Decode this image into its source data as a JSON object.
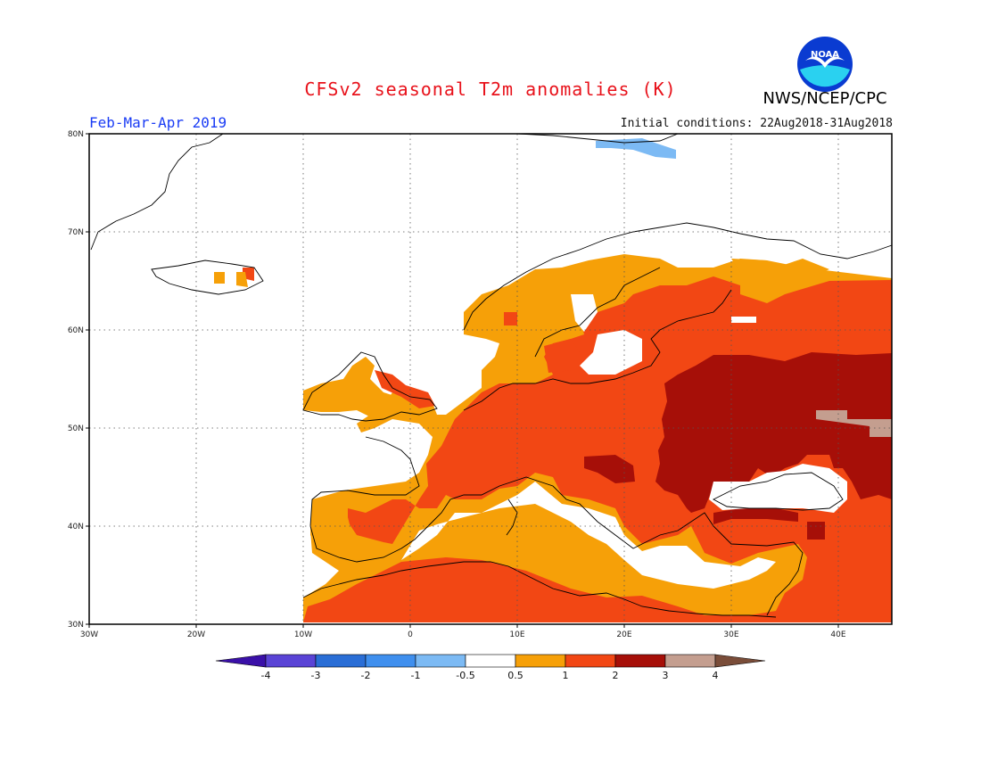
{
  "title": "CFSv2 seasonal T2m anomalies (K)",
  "agency": "NWS/NCEP/CPC",
  "logo_text": "NOAA",
  "period": "Feb-Mar-Apr 2019",
  "initial_conditions": "Initial conditions: 22Aug2018-31Aug2018",
  "axes": {
    "lat_labels": [
      "80N",
      "70N",
      "60N",
      "50N",
      "40N",
      "30N"
    ],
    "lon_labels": [
      "30W",
      "20W",
      "10W",
      "0",
      "10E",
      "20E",
      "30E",
      "40E"
    ],
    "lon_range_deg": [
      -30,
      45
    ],
    "lat_range_deg": [
      30,
      80
    ],
    "grid": "dotted"
  },
  "colorbar": {
    "colors": [
      "#3a10a8",
      "#5a44d6",
      "#2a6ed6",
      "#3f8fee",
      "#7cbaf4",
      "#ffffff",
      "#f6a008",
      "#f24714",
      "#a60f08",
      "#c49e8f",
      "#7a4d39"
    ],
    "labels": [
      "-4",
      "-3",
      "-2",
      "-1",
      "-0.5",
      "0.5",
      "1",
      "2",
      "3",
      "4"
    ]
  },
  "map_colors": {
    "ocean": "#ffffff",
    "anom_0_5_1": "#f6a008",
    "anom_1_2": "#f24714",
    "anom_2_3": "#a60f08",
    "anom_3_4": "#c49e8f",
    "anom_neg": "#7cbaf4",
    "coastline": "#000000"
  }
}
